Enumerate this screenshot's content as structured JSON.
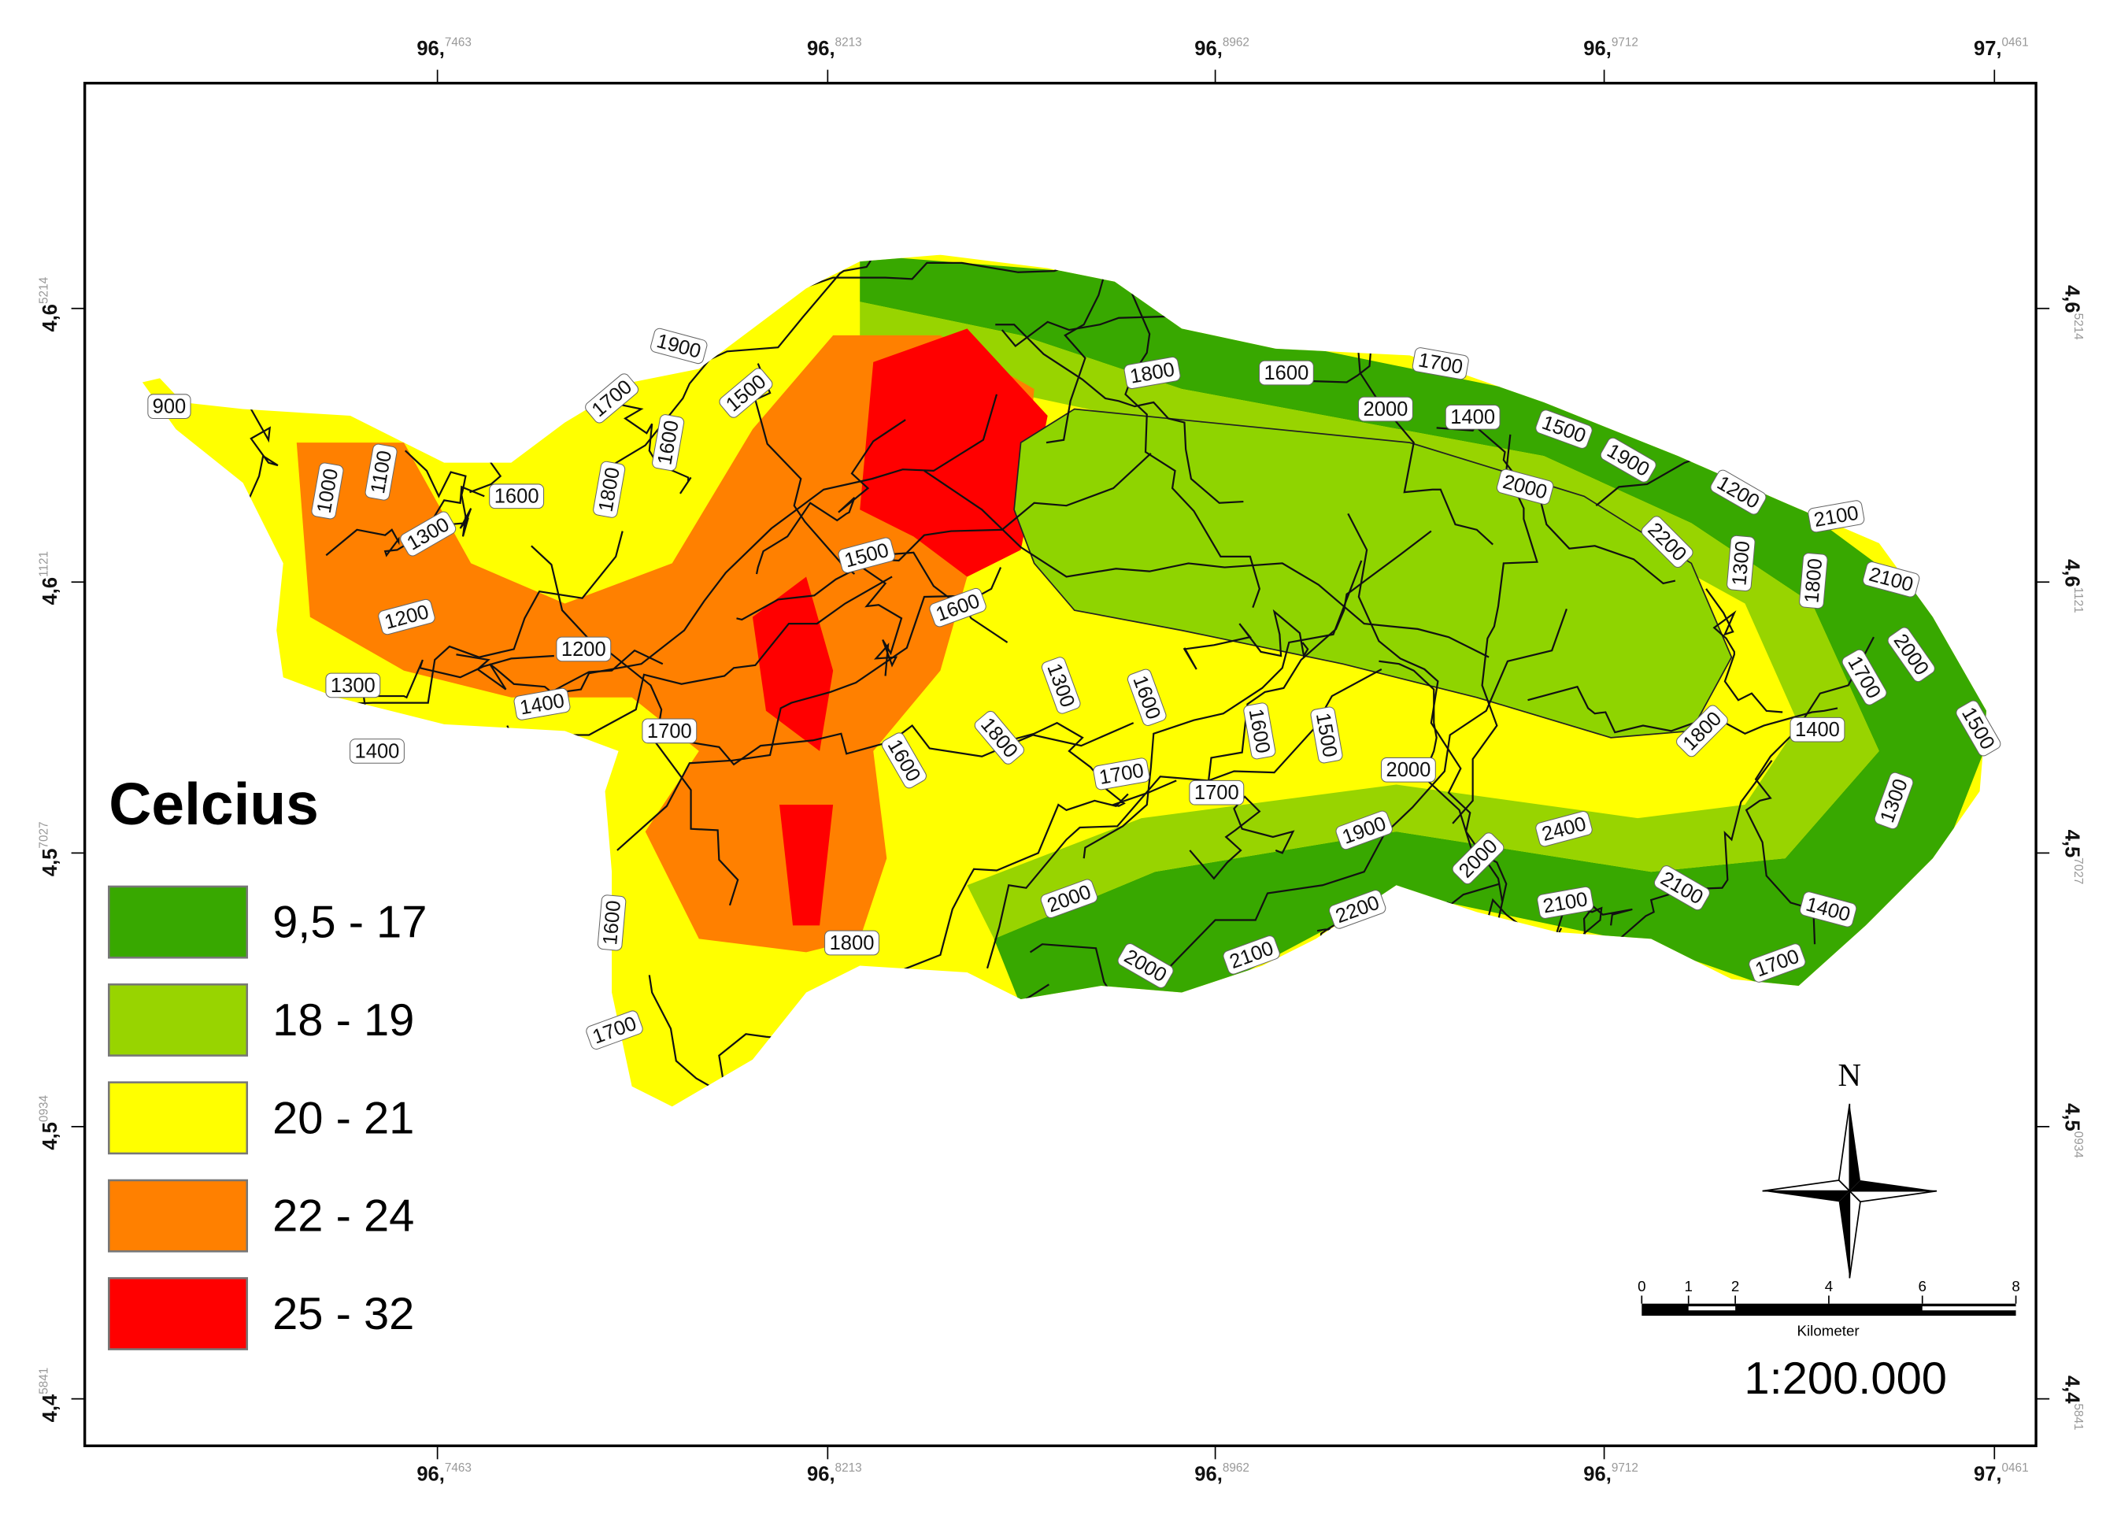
{
  "coordinates": {
    "x_labels": [
      {
        "major": "96,",
        "minor": "7463"
      },
      {
        "major": "96,",
        "minor": "8213"
      },
      {
        "major": "96,",
        "minor": "8962"
      },
      {
        "major": "96,",
        "minor": "9712"
      },
      {
        "major": "97,",
        "minor": "0461"
      }
    ],
    "y_labels": [
      {
        "major": "4,6",
        "minor": "5214"
      },
      {
        "major": "4,6",
        "minor": "1121"
      },
      {
        "major": "4,5",
        "minor": "7027"
      },
      {
        "major": "4,5",
        "minor": "0934"
      },
      {
        "major": "4,4",
        "minor": "5841"
      }
    ]
  },
  "legend": {
    "title": "Celcius",
    "items": [
      {
        "label": "9,5 - 17",
        "color": "#38a800"
      },
      {
        "label": "18 - 19",
        "color": "#98d400"
      },
      {
        "label": "20 - 21",
        "color": "#ffff00"
      },
      {
        "label": "22 - 24",
        "color": "#ff8000"
      },
      {
        "label": "25 - 32",
        "color": "#ff0000"
      }
    ]
  },
  "contour_labels": [
    900,
    1000,
    1100,
    1300,
    1600,
    1700,
    1900,
    1500,
    1600,
    1800,
    1200,
    1300,
    1200,
    1400,
    1700,
    1500,
    1600,
    1300,
    1600,
    1800,
    1600,
    1700,
    1700,
    1600,
    1500,
    2000,
    1900,
    1600,
    1400,
    1800,
    2000,
    2000,
    2100,
    2200,
    2000,
    2400,
    2100,
    2100,
    1700,
    1400,
    1300,
    1400,
    1800,
    1500,
    1700,
    2000,
    2100,
    1800,
    1300,
    2200,
    2100,
    1200,
    2000,
    1900,
    1500,
    1400,
    2000,
    1700,
    1600,
    1800,
    1700
  ],
  "north_arrow": "N",
  "scale_bar": {
    "ticks": [
      0,
      1,
      2,
      4,
      6,
      8
    ],
    "unit": "Kilometer",
    "ratio": "1:200.000"
  }
}
